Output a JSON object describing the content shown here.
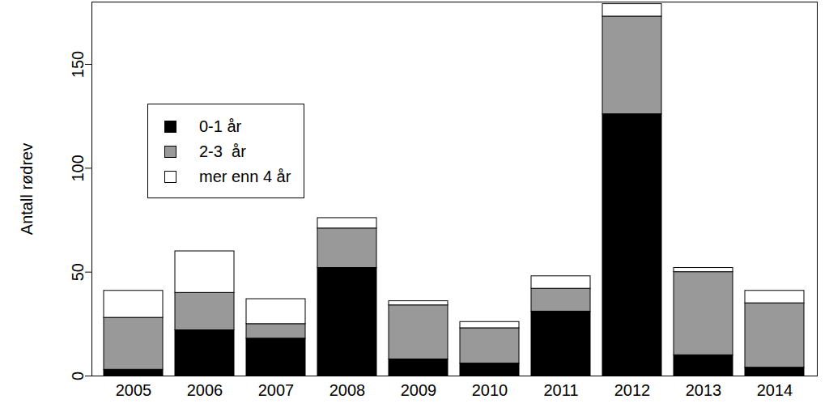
{
  "chart_data": {
    "type": "bar",
    "stacked": true,
    "ylabel": "Antall rødrev",
    "categories": [
      "2005",
      "2006",
      "2007",
      "2008",
      "2009",
      "2010",
      "2011",
      "2012",
      "2013",
      "2014"
    ],
    "series": [
      {
        "name": "0-1 år",
        "color": "#000000",
        "values": [
          3,
          22,
          18,
          52,
          8,
          6,
          31,
          126,
          10,
          4
        ]
      },
      {
        "name": "2-3  år",
        "color": "#999999",
        "values": [
          25,
          18,
          7,
          19,
          26,
          17,
          11,
          47,
          40,
          31
        ]
      },
      {
        "name": "mer enn 4 år",
        "color": "#ffffff",
        "values": [
          13,
          20,
          12,
          5,
          2,
          3,
          6,
          6,
          2,
          6
        ]
      }
    ],
    "ylim": [
      0,
      180
    ],
    "yticks": [
      0,
      50,
      100,
      150
    ],
    "legend": "upper left"
  }
}
